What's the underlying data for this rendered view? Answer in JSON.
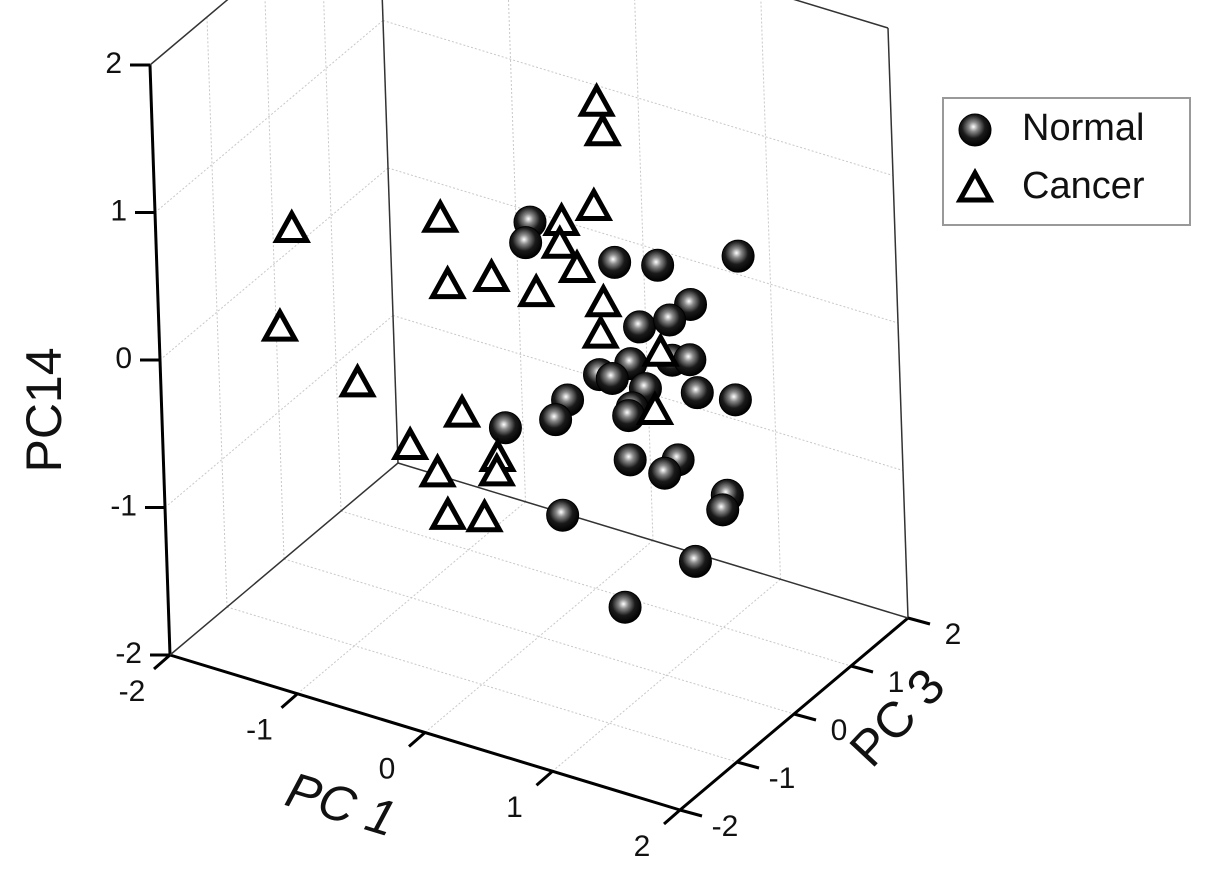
{
  "chart_data": {
    "type": "scatter3d",
    "xlabel": "PC 1",
    "ylabel": "PC 3",
    "zlabel": "PC14",
    "xlim": [
      -2,
      2
    ],
    "ylim": [
      -2,
      2
    ],
    "zlim": [
      -2,
      2
    ],
    "xticks": [
      -2,
      -1,
      0,
      1,
      2
    ],
    "yticks": [
      -2,
      -1,
      0,
      1,
      2
    ],
    "zticks": [
      -2,
      -1,
      0,
      1,
      2
    ],
    "grid": true,
    "legend": "upper right",
    "series": [
      {
        "name": "Normal",
        "color": "#000000",
        "marker": "sphere",
        "x": [
          0.04,
          0.0,
          0.7,
          1.04,
          1.68,
          1.29,
          0.88,
          1.12,
          0.8,
          0.55,
          0.65,
          1.13,
          1.27,
          0.91,
          1.32,
          1.62,
          0.29,
          0.19,
          -0.21,
          0.8,
          0.77,
          0.77,
          1.15,
          1.04,
          1.53,
          1.49,
          0.22,
          1.26,
          0.69
        ],
        "y": [
          0,
          0,
          0,
          0,
          0,
          0,
          0,
          0,
          0,
          0,
          0,
          0,
          0,
          0,
          0,
          0,
          0,
          0,
          0,
          0,
          0,
          0,
          0,
          0,
          0,
          0,
          0,
          0,
          0
        ],
        "z": [
          0.82,
          0.67,
          0.72,
          0.79,
          1.02,
          0.59,
          0.33,
          0.44,
          0.06,
          -0.08,
          -0.08,
          0.17,
          0.21,
          -0.08,
          0.0,
          0.03,
          -0.32,
          -0.48,
          -0.64,
          -0.24,
          -0.3,
          -0.6,
          -0.5,
          -0.62,
          -0.64,
          -0.75,
          -1.12,
          -1.16,
          -1.62
        ]
      },
      {
        "name": "Cancer",
        "color": "#000000",
        "marker": "triangle",
        "x": [
          0.6,
          0.64,
          -1.85,
          -0.67,
          0.55,
          0.29,
          0.27,
          0.4,
          -0.28,
          -0.63,
          0.07,
          0.6,
          0.57,
          1.04,
          -1.97,
          -1.37,
          -0.55,
          0.98,
          -0.97,
          -0.28,
          -0.29,
          -0.76,
          -0.69,
          -0.4
        ],
        "y": [
          0,
          0,
          0,
          0,
          0,
          0,
          0,
          0,
          0,
          0,
          0,
          0,
          0,
          0,
          0,
          0,
          0,
          0,
          0,
          0,
          0,
          0,
          0,
          0
        ],
        "z": [
          1.78,
          1.59,
          0.28,
          0.66,
          1.06,
          0.89,
          0.73,
          0.6,
          0.36,
          0.22,
          0.35,
          0.42,
          0.2,
          0.2,
          -0.42,
          -0.64,
          -0.63,
          -0.21,
          -0.96,
          -0.86,
          -0.96,
          -1.09,
          -1.36,
          -1.3
        ]
      }
    ]
  }
}
